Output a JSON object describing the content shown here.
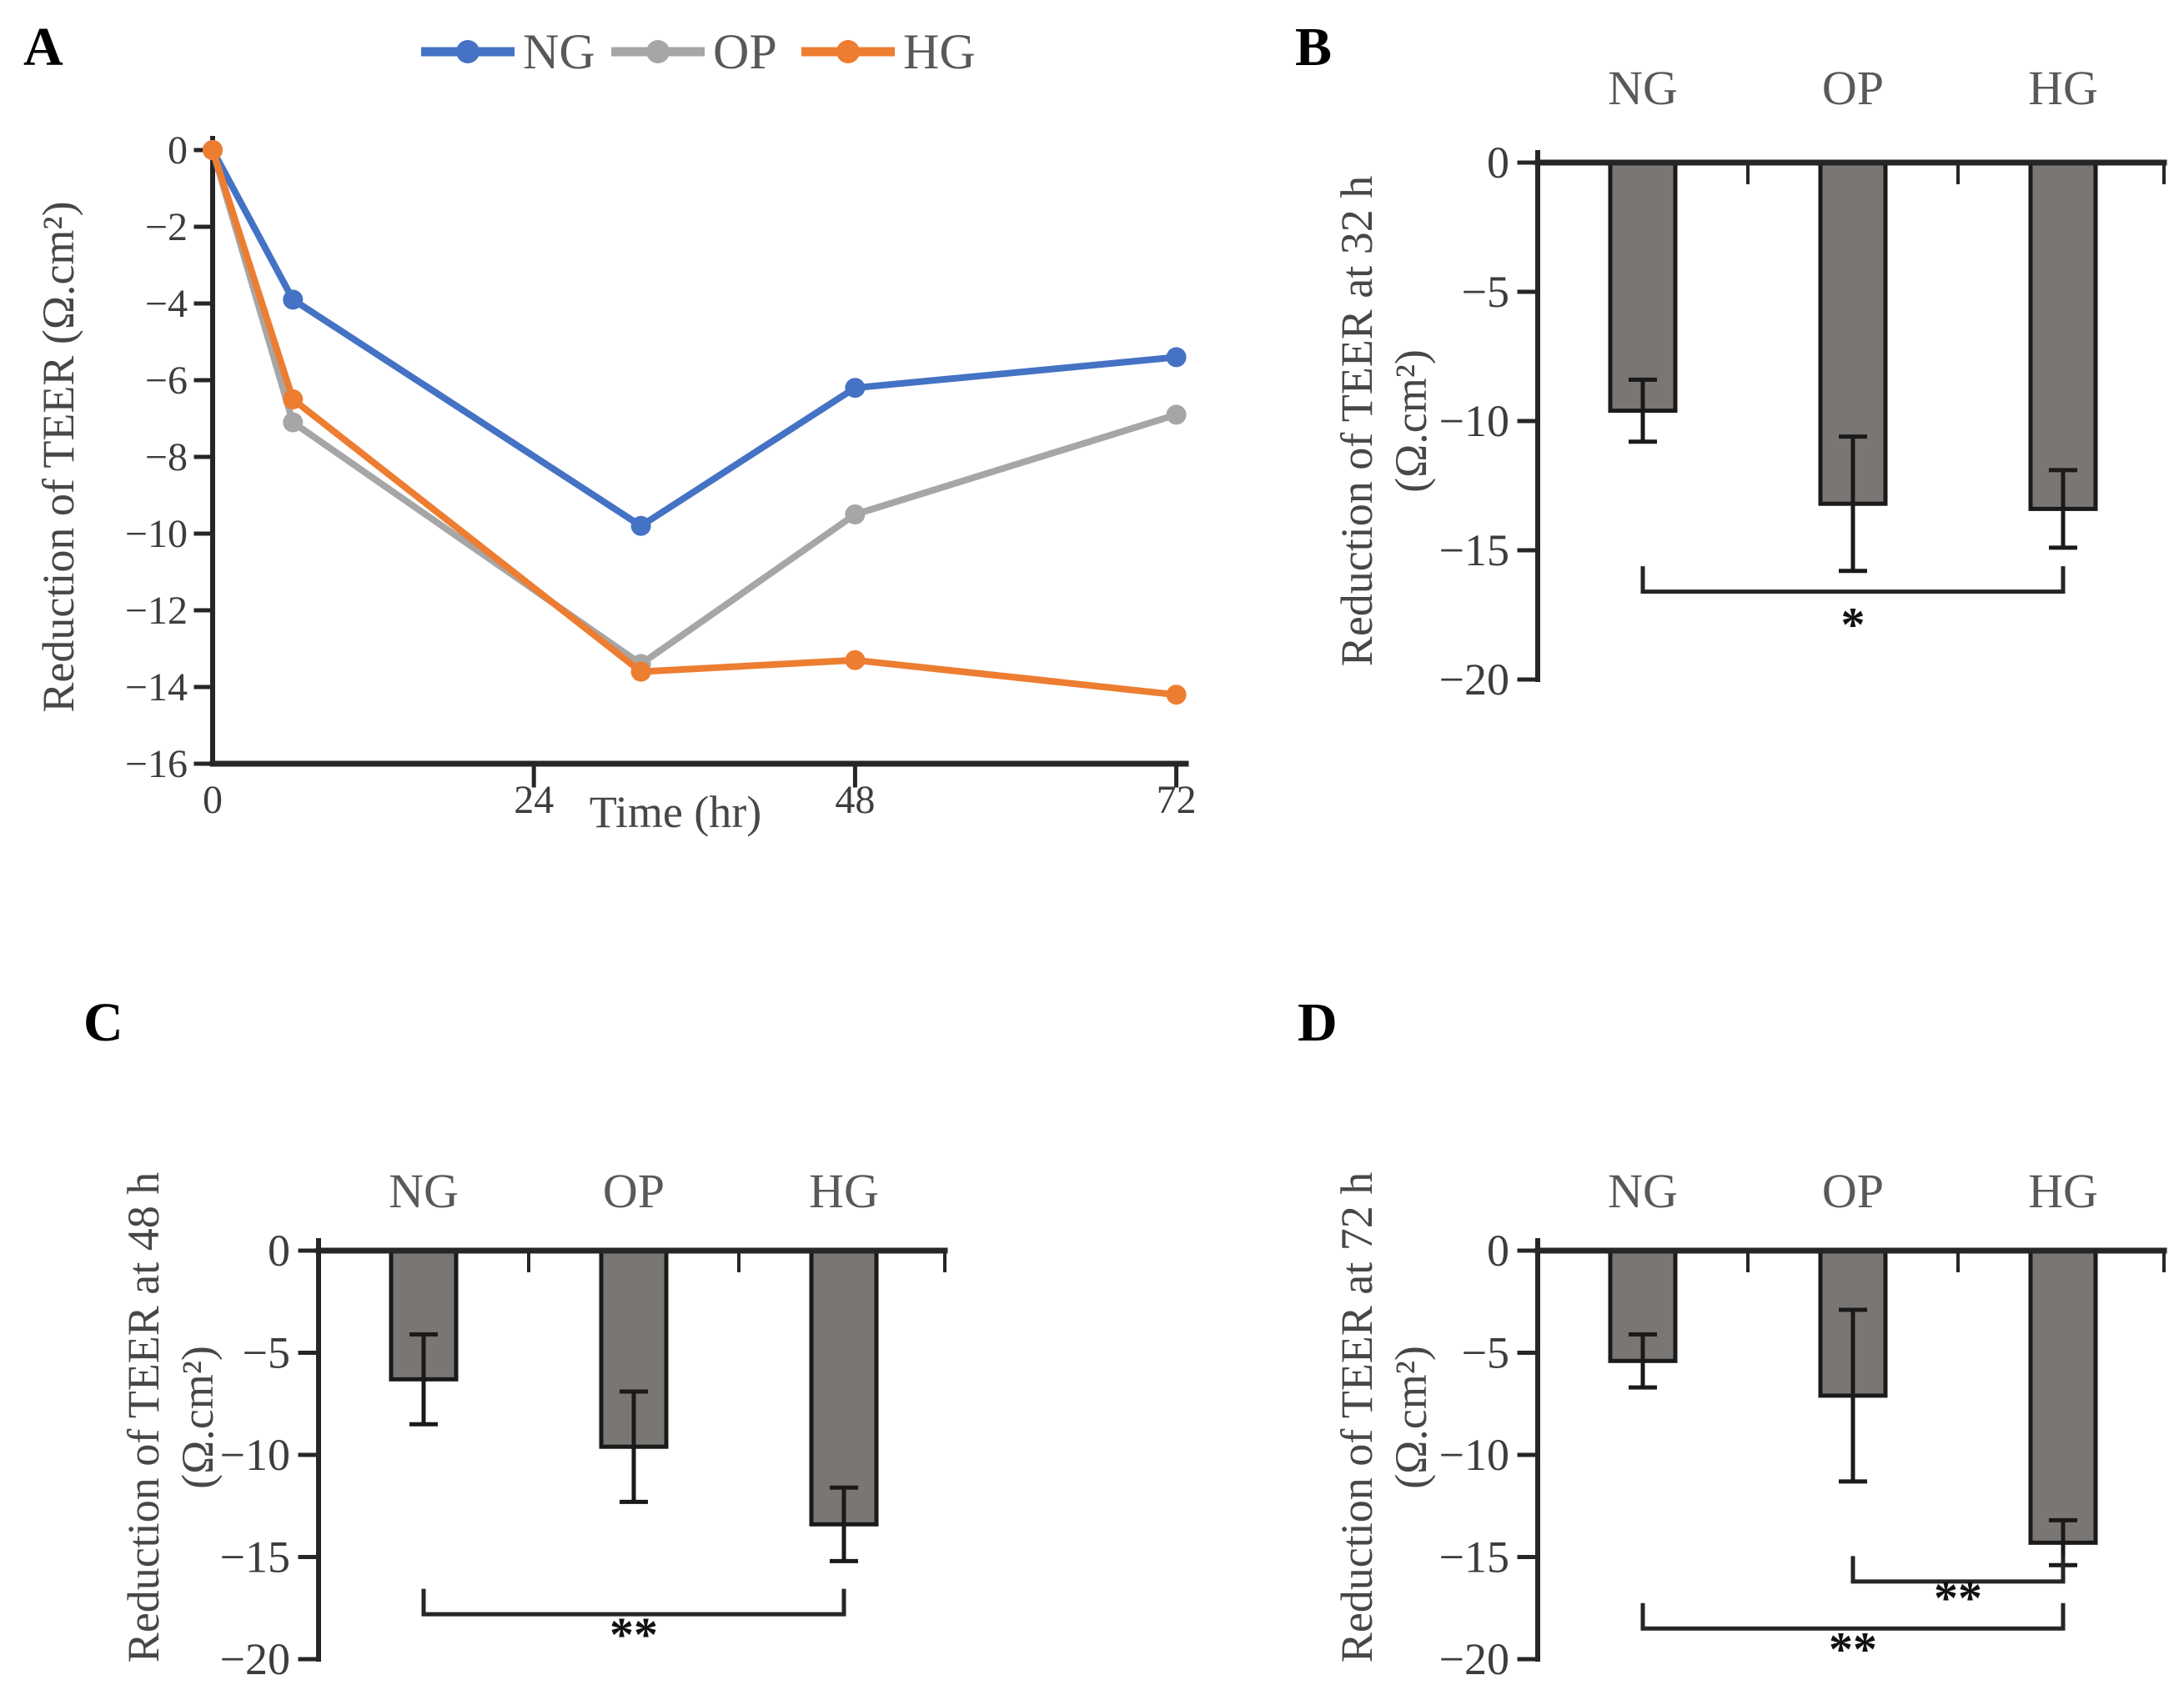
{
  "figure": {
    "background": "#ffffff",
    "panels": {
      "A": {
        "label": "A",
        "chart_data": {
          "type": "line",
          "xlabel": "Time (hr)",
          "ylabel": "Reduction of TEER (Ω.cm²)",
          "x": [
            0,
            6,
            32,
            48,
            72
          ],
          "xticks": [
            0,
            24,
            48,
            72
          ],
          "yticks": [
            0,
            -2,
            -4,
            -6,
            -8,
            -10,
            -12,
            -14,
            -16
          ],
          "xlim": [
            0,
            73
          ],
          "ylim": [
            -16,
            0
          ],
          "grid": false,
          "legend_position": "top",
          "series": [
            {
              "name": "NG",
              "color": "#4472C4",
              "values": [
                0,
                -3.9,
                -9.8,
                -6.2,
                -5.4
              ]
            },
            {
              "name": "OP",
              "color": "#A6A6A6",
              "values": [
                0,
                -7.1,
                -13.4,
                -9.5,
                -6.9
              ]
            },
            {
              "name": "HG",
              "color": "#ED7D31",
              "values": [
                0,
                -6.5,
                -13.6,
                -13.3,
                -14.2
              ]
            }
          ]
        }
      },
      "B": {
        "label": "B",
        "chart_data": {
          "type": "bar",
          "ylabel_line1": "Reduction of TEER at 32 h",
          "ylabel_line2": "(Ω.cm²)",
          "categories": [
            "NG",
            "OP",
            "HG"
          ],
          "values": [
            -9.6,
            -13.2,
            -13.4
          ],
          "errors": [
            1.2,
            2.6,
            1.5
          ],
          "yticks": [
            0,
            -5,
            -10,
            -15,
            -20
          ],
          "ylim": [
            -20,
            0
          ],
          "bar_color": "#7a7674",
          "significance": [
            {
              "from": "NG",
              "to": "HG",
              "label": "*"
            }
          ]
        }
      },
      "C": {
        "label": "C",
        "chart_data": {
          "type": "bar",
          "ylabel_line1": "Reduction of TEER at 48 h",
          "ylabel_line2": "(Ω.cm²)",
          "categories": [
            "NG",
            "OP",
            "HG"
          ],
          "values": [
            -6.3,
            -9.6,
            -13.4
          ],
          "errors": [
            2.2,
            2.7,
            1.8
          ],
          "yticks": [
            0,
            -5,
            -10,
            -15,
            -20
          ],
          "ylim": [
            -20,
            0
          ],
          "bar_color": "#7a7674",
          "significance": [
            {
              "from": "NG",
              "to": "HG",
              "label": "**"
            }
          ]
        }
      },
      "D": {
        "label": "D",
        "chart_data": {
          "type": "bar",
          "ylabel_line1": "Reduction of TEER at 72 h",
          "ylabel_line2": "(Ω.cm²)",
          "categories": [
            "NG",
            "OP",
            "HG"
          ],
          "values": [
            -5.4,
            -7.1,
            -14.3
          ],
          "errors": [
            1.3,
            4.2,
            1.1
          ],
          "yticks": [
            0,
            -5,
            -10,
            -15,
            -20
          ],
          "ylim": [
            -20,
            0
          ],
          "bar_color": "#7a7674",
          "significance": [
            {
              "from": "OP",
              "to": "HG",
              "label": "**"
            },
            {
              "from": "NG",
              "to": "HG",
              "label": "**"
            }
          ]
        }
      }
    }
  }
}
